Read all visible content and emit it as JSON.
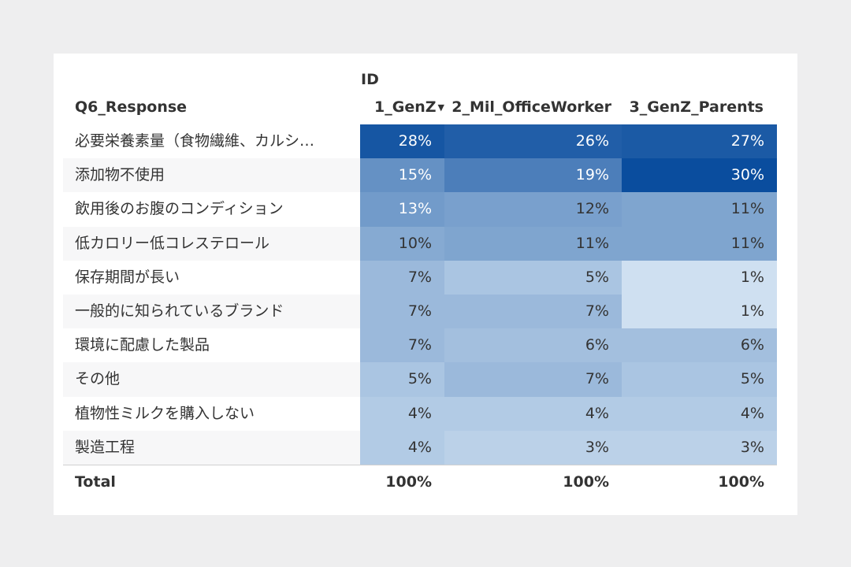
{
  "header": {
    "column_group_label": "ID",
    "row_label": "Q6_Response",
    "sort_icon": "sort-descending-icon"
  },
  "chart_data": {
    "type": "table",
    "title": "",
    "columns": [
      "1_GenZ",
      "2_Mil_OfficeWorker",
      "3_GenZ_Parents"
    ],
    "rows": [
      {
        "label": "必要栄養素量（食物繊維、カルシ…",
        "values": [
          28,
          26,
          27
        ]
      },
      {
        "label": "添加物不使用",
        "values": [
          15,
          19,
          30
        ]
      },
      {
        "label": "飲用後のお腹のコンディション",
        "values": [
          13,
          12,
          11
        ]
      },
      {
        "label": "低カロリー低コレステロール",
        "values": [
          10,
          11,
          11
        ]
      },
      {
        "label": "保存期間が長い",
        "values": [
          7,
          5,
          1
        ]
      },
      {
        "label": "一般的に知られているブランド",
        "values": [
          7,
          7,
          1
        ]
      },
      {
        "label": "環境に配慮した製品",
        "values": [
          7,
          6,
          6
        ]
      },
      {
        "label": "その他",
        "values": [
          5,
          7,
          5
        ]
      },
      {
        "label": "植物性ミルクを購入しない",
        "values": [
          4,
          4,
          4
        ]
      },
      {
        "label": "製造工程",
        "values": [
          4,
          3,
          3
        ]
      }
    ],
    "total": {
      "label": "Total",
      "values": [
        100,
        100,
        100
      ]
    },
    "value_suffix": "%",
    "color_scale": {
      "low": "#cfe0f1",
      "high": "#0a4d9e",
      "text_dark": "#333333",
      "text_light": "#ffffff"
    }
  }
}
